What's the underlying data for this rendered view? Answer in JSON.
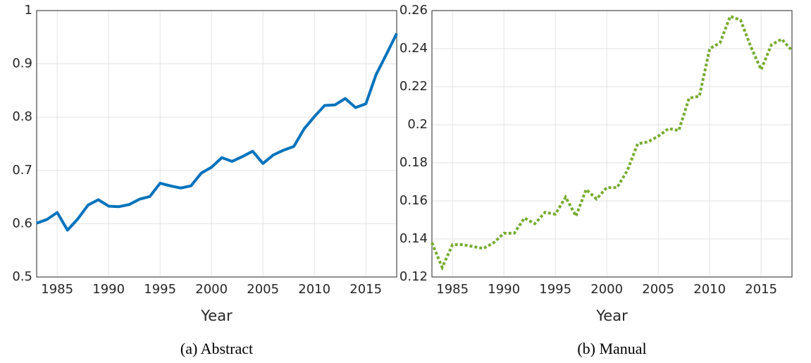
{
  "chart_data": [
    {
      "type": "line",
      "caption": "(a) Abstract",
      "xlabel": "Year",
      "x": [
        1983,
        1984,
        1985,
        1986,
        1987,
        1988,
        1989,
        1990,
        1991,
        1992,
        1993,
        1994,
        1995,
        1996,
        1997,
        1998,
        1999,
        2000,
        2001,
        2002,
        2003,
        2004,
        2005,
        2006,
        2007,
        2008,
        2009,
        2010,
        2011,
        2012,
        2013,
        2014,
        2015,
        2016,
        2017,
        2018
      ],
      "values": [
        0.601,
        0.608,
        0.621,
        0.588,
        0.609,
        0.635,
        0.645,
        0.633,
        0.632,
        0.636,
        0.646,
        0.651,
        0.676,
        0.671,
        0.667,
        0.671,
        0.695,
        0.706,
        0.724,
        0.717,
        0.726,
        0.736,
        0.713,
        0.729,
        0.738,
        0.745,
        0.778,
        0.801,
        0.822,
        0.823,
        0.835,
        0.818,
        0.825,
        0.88,
        0.918,
        0.957
      ],
      "color": "#0072bd",
      "line_style": "solid",
      "xlim": [
        1983,
        2018
      ],
      "xticks": [
        1985,
        1990,
        1995,
        2000,
        2005,
        2010,
        2015
      ],
      "ylim": [
        0.5,
        1
      ],
      "yticks": [
        0.5,
        0.6,
        0.7,
        0.8,
        0.9,
        1
      ],
      "grid": true
    },
    {
      "type": "line",
      "caption": "(b) Manual",
      "xlabel": "Year",
      "x": [
        1983,
        1984,
        1985,
        1986,
        1987,
        1988,
        1989,
        1990,
        1991,
        1992,
        1993,
        1994,
        1995,
        1996,
        1997,
        1998,
        1999,
        2000,
        2001,
        2002,
        2003,
        2004,
        2005,
        2006,
        2007,
        2008,
        2009,
        2010,
        2011,
        2012,
        2013,
        2014,
        2015,
        2016,
        2017,
        2018
      ],
      "values": [
        0.138,
        0.125,
        0.137,
        0.137,
        0.136,
        0.135,
        0.138,
        0.143,
        0.143,
        0.151,
        0.148,
        0.154,
        0.153,
        0.162,
        0.152,
        0.166,
        0.161,
        0.167,
        0.167,
        0.176,
        0.19,
        0.191,
        0.194,
        0.198,
        0.197,
        0.214,
        0.215,
        0.24,
        0.243,
        0.257,
        0.255,
        0.241,
        0.229,
        0.242,
        0.245,
        0.239
      ],
      "color": "#77ac30",
      "line_style": "dotted",
      "xlim": [
        1983,
        2018
      ],
      "xticks": [
        1985,
        1990,
        1995,
        2000,
        2005,
        2010,
        2015
      ],
      "ylim": [
        0.12,
        0.26
      ],
      "yticks": [
        0.12,
        0.14,
        0.16,
        0.18,
        0.2,
        0.22,
        0.24,
        0.26
      ],
      "grid": true
    }
  ]
}
